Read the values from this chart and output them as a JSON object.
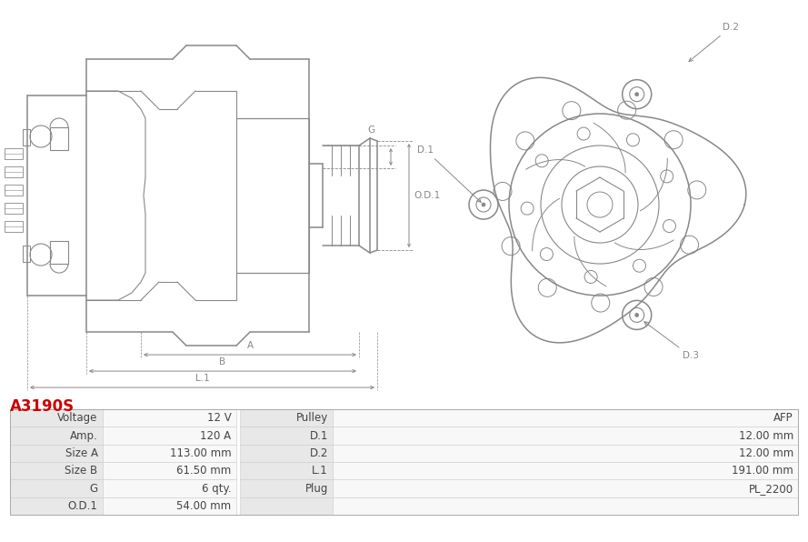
{
  "title": "A3190S",
  "title_color": "#cc0000",
  "bg_color": "#ffffff",
  "table_rows": [
    [
      "Voltage",
      "12 V",
      "Pulley",
      "AFP"
    ],
    [
      "Amp.",
      "120 A",
      "D.1",
      "12.00 mm"
    ],
    [
      "Size A",
      "113.00 mm",
      "D.2",
      "12.00 mm"
    ],
    [
      "Size B",
      "61.50 mm",
      "L.1",
      "191.00 mm"
    ],
    [
      "G",
      "6 qty.",
      "Plug",
      "PL_2200"
    ],
    [
      "O.D.1",
      "54.00 mm",
      "",
      ""
    ]
  ],
  "lc": "#888888",
  "dim_color": "#888888",
  "row_bg_label": "#e8e8e8",
  "row_bg_value": "#f8f8f8",
  "row_bg_label2": "#e8e8e8",
  "row_bg_value2": "#f8f8f8",
  "border_color": "#cccccc",
  "text_color": "#444444",
  "font_size": 8.5
}
